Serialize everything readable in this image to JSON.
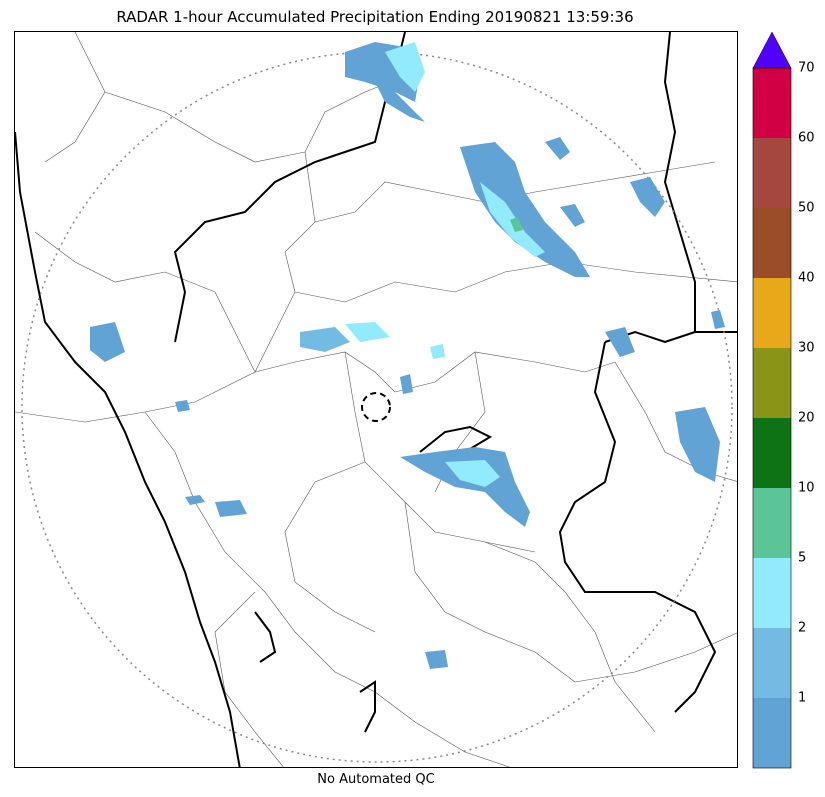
{
  "title": "RADAR 1-hour Accumulated Precipitation Ending 20190821 13:59:36",
  "footer": "No Automated QC",
  "colorbar": {
    "labels": [
      "1",
      "2",
      "5",
      "10",
      "20",
      "30",
      "40",
      "50",
      "60",
      "70"
    ],
    "colors": [
      "#62a3d6",
      "#74bbe3",
      "#92eafd",
      "#5cc598",
      "#0e7314",
      "#8a9416",
      "#e7a91a",
      "#9a4e28",
      "#a6473f",
      "#d10044"
    ],
    "extend_color": "#5000ff"
  },
  "colors": {
    "boundary_major": "#000000",
    "boundary_minor": "#555555",
    "range_ring": "#888888",
    "precip_light": "#62a3d6",
    "precip_mid": "#92eafd",
    "precip_green": "#5cc598"
  }
}
